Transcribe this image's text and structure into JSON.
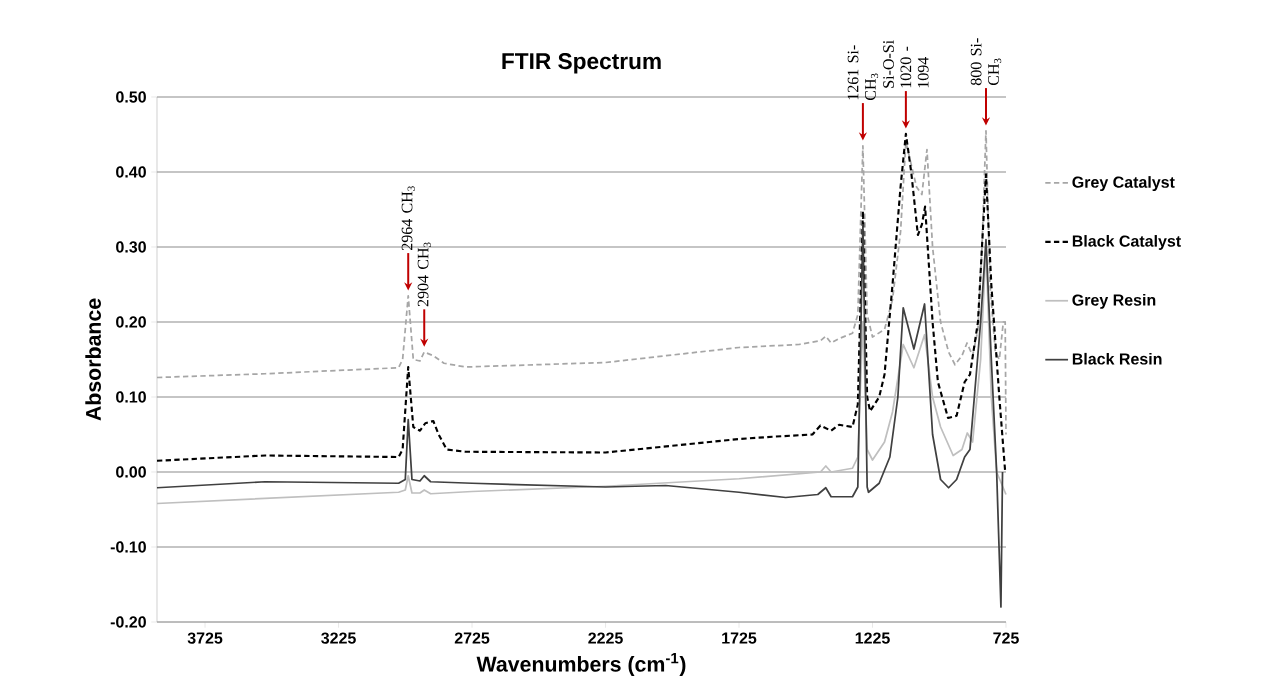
{
  "chart_data": {
    "type": "line",
    "title": "FTIR Spectrum",
    "xlabel": "Wavenumbers (cm$^{-1}$)",
    "ylabel": "Absorbance",
    "xlim": [
      3905,
      725
    ],
    "ylim": [
      -0.2,
      0.5
    ],
    "xticks": [
      3725,
      3225,
      2725,
      2225,
      1725,
      1225,
      725
    ],
    "yticks": [
      {
        "value": 0.5,
        "label": "0.50"
      },
      {
        "value": 0.4,
        "label": "0.40"
      },
      {
        "value": 0.3,
        "label": "0.30"
      },
      {
        "value": 0.2,
        "label": "0.20"
      },
      {
        "value": 0.1,
        "label": "0.10"
      },
      {
        "value": 0.0,
        "label": "0.00"
      },
      {
        "value": -0.1,
        "label": "-0.10"
      },
      {
        "value": -0.2,
        "label": "-0.20"
      }
    ],
    "grid": "y",
    "legend": "right",
    "marker": "none",
    "series": [
      {
        "name": "Grey Catalyst",
        "color": "#a6a6a6",
        "line_style": "dashed",
        "x": [
          3905,
          3500,
          3000,
          2985,
          2964,
          2945,
          2920,
          2904,
          2870,
          2830,
          2750,
          2225,
          1725,
          1500,
          1420,
          1400,
          1380,
          1350,
          1300,
          1280,
          1261,
          1245,
          1225,
          1180,
          1150,
          1120,
          1100,
          1060,
          1040,
          1021,
          1000,
          970,
          940,
          916,
          890,
          871,
          850,
          830,
          815,
          800,
          785,
          765,
          750,
          735,
          728,
          725
        ],
        "values": [
          0.126,
          0.131,
          0.139,
          0.15,
          0.235,
          0.15,
          0.148,
          0.16,
          0.155,
          0.145,
          0.14,
          0.146,
          0.166,
          0.17,
          0.175,
          0.181,
          0.172,
          0.178,
          0.185,
          0.21,
          0.435,
          0.21,
          0.18,
          0.19,
          0.23,
          0.32,
          0.44,
          0.38,
          0.37,
          0.43,
          0.3,
          0.2,
          0.16,
          0.143,
          0.155,
          0.172,
          0.155,
          0.19,
          0.3,
          0.455,
          0.25,
          0.16,
          0.15,
          0.2,
          0.2,
          0.05
        ]
      },
      {
        "name": "Black Catalyst",
        "color": "#000000",
        "line_style": "dashed",
        "x": [
          3905,
          3500,
          3000,
          2985,
          2964,
          2945,
          2920,
          2900,
          2870,
          2850,
          2820,
          2750,
          2225,
          1725,
          1600,
          1450,
          1420,
          1380,
          1350,
          1300,
          1280,
          1261,
          1245,
          1234,
          1200,
          1180,
          1150,
          1120,
          1100,
          1080,
          1055,
          1040,
          1028,
          1000,
          980,
          942,
          910,
          880,
          860,
          830,
          815,
          800,
          780,
          750,
          728
        ],
        "values": [
          0.015,
          0.022,
          0.02,
          0.03,
          0.14,
          0.06,
          0.055,
          0.065,
          0.068,
          0.05,
          0.03,
          0.027,
          0.026,
          0.044,
          0.047,
          0.05,
          0.062,
          0.055,
          0.063,
          0.06,
          0.09,
          0.348,
          0.1,
          0.081,
          0.1,
          0.13,
          0.25,
          0.38,
          0.451,
          0.4,
          0.316,
          0.33,
          0.354,
          0.2,
          0.12,
          0.072,
          0.075,
          0.12,
          0.13,
          0.2,
          0.3,
          0.397,
          0.25,
          0.1,
          0.0
        ]
      },
      {
        "name": "Grey Resin",
        "color": "#bfbfbf",
        "line_style": "solid",
        "x": [
          3905,
          3000,
          2975,
          2964,
          2950,
          2920,
          2904,
          2880,
          2725,
          2225,
          1725,
          1420,
          1400,
          1380,
          1300,
          1280,
          1261,
          1245,
          1225,
          1180,
          1150,
          1110,
          1070,
          1030,
          1000,
          970,
          923,
          890,
          870,
          850,
          820,
          800,
          780,
          760,
          725
        ],
        "values": [
          -0.042,
          -0.027,
          -0.024,
          -0.005,
          -0.028,
          -0.028,
          -0.024,
          -0.029,
          -0.026,
          -0.019,
          -0.009,
          0.0,
          0.008,
          0.0,
          0.005,
          0.02,
          0.2,
          0.03,
          0.016,
          0.04,
          0.08,
          0.17,
          0.139,
          0.183,
          0.1,
          0.06,
          0.022,
          0.03,
          0.052,
          0.04,
          0.15,
          0.3,
          0.1,
          0.0,
          -0.03
        ]
      },
      {
        "name": "Black Resin",
        "color": "#404040",
        "line_style": "solid",
        "x": [
          3905,
          3500,
          3000,
          2975,
          2964,
          2950,
          2920,
          2904,
          2880,
          2725,
          2225,
          2000,
          1725,
          1550,
          1430,
          1400,
          1380,
          1300,
          1280,
          1261,
          1245,
          1240,
          1200,
          1160,
          1130,
          1110,
          1070,
          1030,
          1000,
          970,
          940,
          910,
          880,
          860,
          820,
          800,
          780,
          760,
          744,
          738
        ],
        "values": [
          -0.021,
          -0.013,
          -0.015,
          -0.01,
          0.07,
          -0.01,
          -0.012,
          -0.005,
          -0.013,
          -0.015,
          -0.02,
          -0.018,
          -0.027,
          -0.034,
          -0.03,
          -0.021,
          -0.033,
          -0.033,
          -0.02,
          0.33,
          -0.02,
          -0.027,
          -0.015,
          0.02,
          0.1,
          0.219,
          0.164,
          0.224,
          0.05,
          -0.01,
          -0.021,
          -0.01,
          0.02,
          0.03,
          0.2,
          0.31,
          0.15,
          0.0,
          -0.18,
          0.0
        ]
      }
    ],
    "annotations": [
      {
        "text": "2964 CH$_{3}$",
        "x": 2964,
        "y": 0.235
      },
      {
        "text": "2904 CH$_{3}$",
        "x": 2904,
        "y": 0.16
      },
      {
        "text": "1261 Si-CH$_{3}$",
        "x": 1261,
        "y": 0.435
      },
      {
        "text": "Si-O-Si 1020 - 1094",
        "x": 1100,
        "y": 0.451
      },
      {
        "text": "800 Si-CH$_{3}$",
        "x": 800,
        "y": 0.455
      }
    ]
  }
}
